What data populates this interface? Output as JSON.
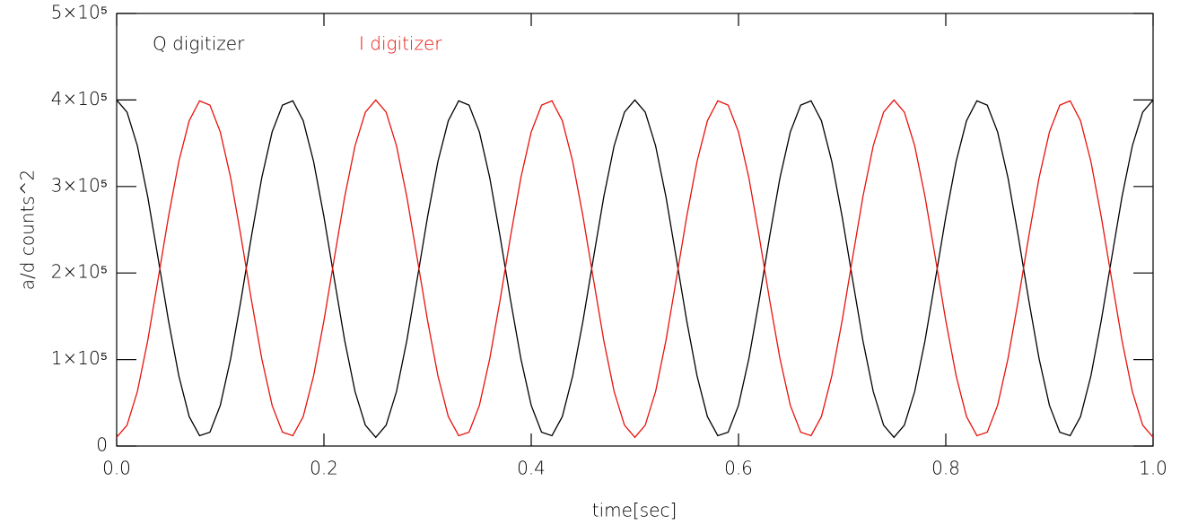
{
  "chart_data": {
    "type": "line",
    "xlabel": "time[sec]",
    "ylabel": "a/d counts^2",
    "xlim": [
      0,
      1
    ],
    "ylim": [
      0,
      500000
    ],
    "xticks": [
      {
        "value": 0,
        "label": "0.0"
      },
      0.2,
      0.4,
      0.6,
      0.8,
      {
        "value": 1,
        "label": "1.0"
      }
    ],
    "yticks": [
      0,
      {
        "value": 100000,
        "label": "1×10⁵"
      },
      {
        "value": 200000,
        "label": "2×10⁵"
      },
      {
        "value": 300000,
        "label": "3×10⁵"
      },
      {
        "value": 400000,
        "label": "4×10⁵"
      },
      {
        "value": 500000,
        "label": "5×10⁵"
      }
    ],
    "legend": "upper left",
    "x": [
      0,
      0.01,
      0.02,
      0.03,
      0.04,
      0.05,
      0.06,
      0.07,
      0.08,
      0.09,
      0.1,
      0.11,
      0.12,
      0.13,
      0.14,
      0.15,
      0.16,
      0.17,
      0.18,
      0.19,
      0.2,
      0.21,
      0.22,
      0.23,
      0.24,
      0.25,
      0.26,
      0.27,
      0.28,
      0.29,
      0.3,
      0.31,
      0.32,
      0.33,
      0.34,
      0.35,
      0.36,
      0.37,
      0.38,
      0.39,
      0.4,
      0.41,
      0.42,
      0.43,
      0.44,
      0.45,
      0.46,
      0.47,
      0.48,
      0.49,
      0.5,
      0.51,
      0.52,
      0.53,
      0.54,
      0.55,
      0.56,
      0.57,
      0.58,
      0.59,
      0.6,
      0.61,
      0.62,
      0.63,
      0.64,
      0.65,
      0.66,
      0.67,
      0.68,
      0.69,
      0.7,
      0.71,
      0.72,
      0.73,
      0.74,
      0.75,
      0.76,
      0.77,
      0.78,
      0.79,
      0.8,
      0.81,
      0.82,
      0.83,
      0.84,
      0.85,
      0.86,
      0.87,
      0.88,
      0.89,
      0.9,
      0.91,
      0.92,
      0.93,
      0.94,
      0.95,
      0.96,
      0.97,
      0.98,
      0.99,
      1
    ],
    "series": [
      {
        "name": "Q digitizer",
        "color": "#000000",
        "values": [
          400000,
          386000,
          347000,
          288000,
          217000,
          145000,
          81000,
          34000,
          12000,
          16000,
          47000,
          101000,
          169000,
          242000,
          310000,
          363000,
          394000,
          399000,
          376000,
          329000,
          265000,
          193000,
          122000,
          63000,
          24000,
          10000,
          24000,
          63000,
          122000,
          193000,
          265000,
          329000,
          376000,
          399000,
          394000,
          363000,
          310000,
          242000,
          169000,
          101000,
          47000,
          16000,
          12000,
          34000,
          81000,
          145000,
          217000,
          288000,
          347000,
          386000,
          400000,
          386000,
          347000,
          288000,
          217000,
          145000,
          81000,
          34000,
          12000,
          16000,
          47000,
          101000,
          169000,
          242000,
          310000,
          363000,
          394000,
          399000,
          376000,
          329000,
          265000,
          193000,
          122000,
          63000,
          24000,
          10000,
          24000,
          63000,
          122000,
          193000,
          265000,
          329000,
          376000,
          399000,
          394000,
          363000,
          310000,
          242000,
          169000,
          101000,
          47000,
          16000,
          12000,
          34000,
          81000,
          145000,
          217000,
          288000,
          347000,
          386000,
          400000
        ]
      },
      {
        "name": "I digitizer",
        "color": "#e8120c",
        "values": [
          10000,
          24000,
          63000,
          122000,
          193000,
          265000,
          329000,
          376000,
          399000,
          394000,
          363000,
          310000,
          242000,
          169000,
          101000,
          47000,
          16000,
          12000,
          34000,
          81000,
          145000,
          217000,
          288000,
          347000,
          386000,
          400000,
          386000,
          347000,
          288000,
          217000,
          145000,
          81000,
          34000,
          12000,
          16000,
          47000,
          101000,
          169000,
          242000,
          310000,
          363000,
          394000,
          399000,
          376000,
          329000,
          265000,
          193000,
          122000,
          63000,
          24000,
          10000,
          24000,
          63000,
          122000,
          193000,
          265000,
          329000,
          376000,
          399000,
          394000,
          363000,
          310000,
          242000,
          169000,
          101000,
          47000,
          16000,
          12000,
          34000,
          81000,
          145000,
          217000,
          288000,
          347000,
          386000,
          400000,
          386000,
          347000,
          288000,
          217000,
          145000,
          81000,
          34000,
          12000,
          16000,
          47000,
          101000,
          169000,
          242000,
          310000,
          363000,
          394000,
          399000,
          376000,
          329000,
          265000,
          193000,
          122000,
          63000,
          24000,
          10000
        ]
      }
    ]
  }
}
